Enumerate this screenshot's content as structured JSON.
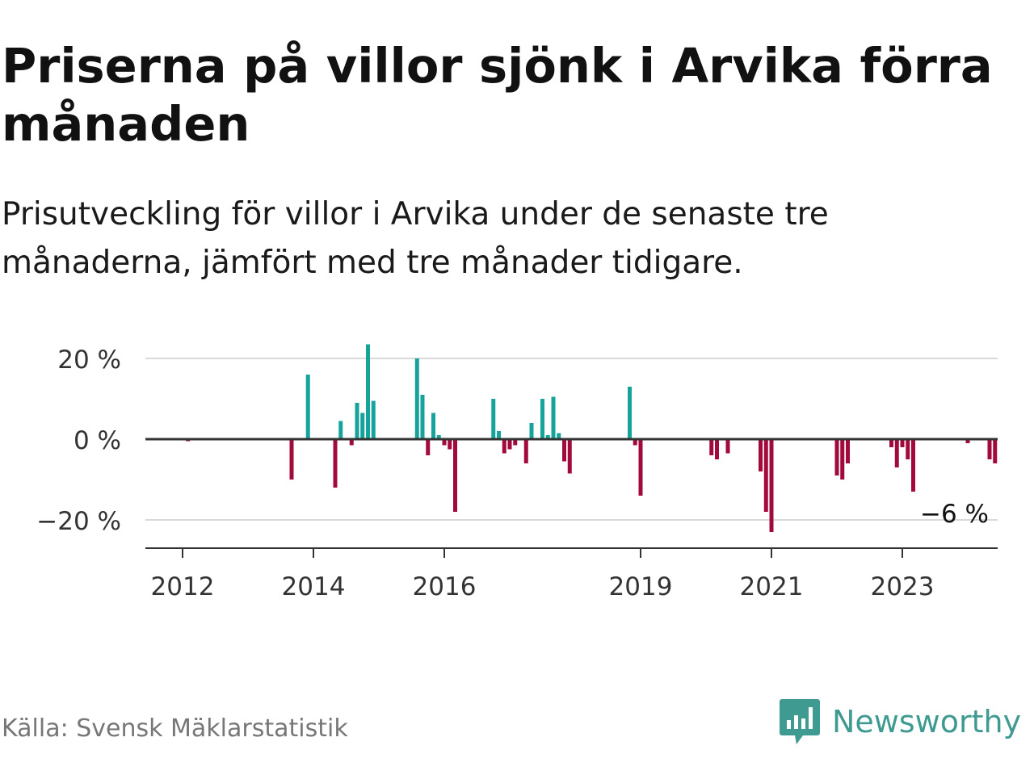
{
  "title": "Priserna på villor sjönk i Arvika förra månaden",
  "subtitle": "Prisutveckling för villor i Arvika under de senaste tre månaderna, jämfört med tre månader tidigare.",
  "source": "Källa: Svensk Mäklarstatistik",
  "brand": "Newsworthy",
  "colors": {
    "positive": "#16a39b",
    "negative": "#a10a3b",
    "brand": "#3f9a92",
    "grid": "#d9d9d9",
    "axis": "#333333"
  },
  "chart_data": {
    "type": "bar",
    "x_tick_labels": [
      "2012",
      "2014",
      "2016",
      "2019",
      "2021",
      "2023"
    ],
    "y_tick_labels": [
      "20 %",
      "0 %",
      "−20 %"
    ],
    "y_ticks": [
      20,
      0,
      -20
    ],
    "ylim": [
      -26,
      25
    ],
    "xlim": [
      "2011-06",
      "2024-10"
    ],
    "grid": true,
    "annotation": {
      "text": "−6 %",
      "x": "2024-06",
      "y": -6
    },
    "series": [
      {
        "x": [
          "2012-02",
          "2013-09",
          "2013-12",
          "2014-05",
          "2014-06",
          "2014-08",
          "2014-09",
          "2014-10",
          "2014-11",
          "2014-12",
          "2015-08",
          "2015-09",
          "2015-10",
          "2015-11",
          "2015-12",
          "2016-01",
          "2016-02",
          "2016-03",
          "2016-10",
          "2016-11",
          "2016-12",
          "2017-01",
          "2017-02",
          "2017-04",
          "2017-05",
          "2017-07",
          "2017-08",
          "2017-09",
          "2017-10",
          "2017-11",
          "2017-12",
          "2018-11",
          "2018-12",
          "2019-01",
          "2020-02",
          "2020-03",
          "2020-05",
          "2020-11",
          "2020-12",
          "2021-01",
          "2022-01",
          "2022-02",
          "2022-03",
          "2022-11",
          "2022-12",
          "2023-01",
          "2023-02",
          "2023-03",
          "2024-01",
          "2024-05",
          "2024-06"
        ],
        "values": [
          -0.5,
          -10,
          16,
          -12,
          4.5,
          -1.5,
          9,
          6.5,
          23.5,
          9.5,
          20,
          11,
          -4,
          6.5,
          1,
          -1.5,
          -2.5,
          -18,
          10,
          2,
          -3.5,
          -2.5,
          -1.5,
          -6,
          4,
          10,
          1,
          10.5,
          1.5,
          -5.5,
          -8.5,
          13,
          -1.5,
          -14,
          -4,
          -5,
          -3.5,
          -8,
          -18,
          -23,
          -9,
          -10,
          -6,
          -2,
          -7,
          -2,
          -5,
          -13,
          -1,
          -5,
          -6
        ]
      }
    ]
  }
}
